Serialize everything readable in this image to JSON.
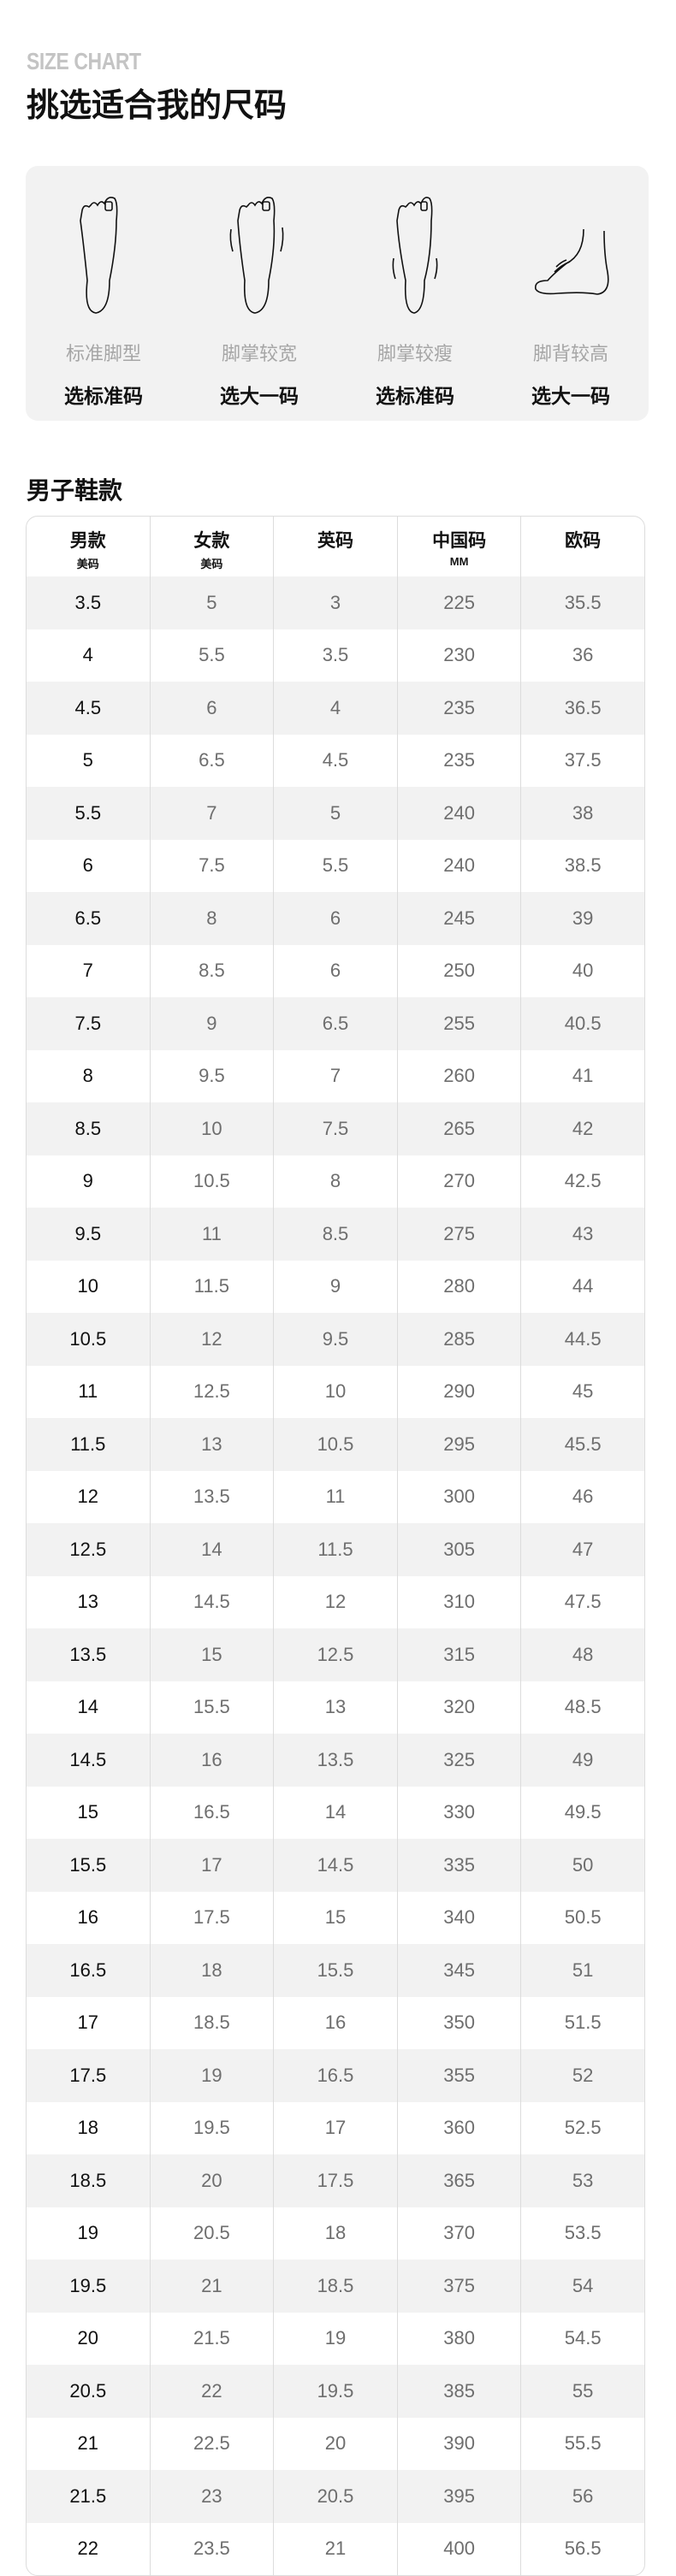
{
  "header": {
    "eyebrow": "SIZE CHART",
    "title": "挑选适合我的尺码"
  },
  "foot_types": [
    {
      "icon": "standard-foot-icon",
      "label": "标准脚型",
      "advice": "选标准码"
    },
    {
      "icon": "wide-forefoot-icon",
      "label": "脚掌较宽",
      "advice": "选大一码"
    },
    {
      "icon": "narrow-forefoot-icon",
      "label": "脚掌较瘦",
      "advice": "选标准码"
    },
    {
      "icon": "high-instep-icon",
      "label": "脚背较高",
      "advice": "选大一码"
    }
  ],
  "section_title": "男子鞋款",
  "table": {
    "columns": [
      {
        "label": "男款",
        "sub": "美码"
      },
      {
        "label": "女款",
        "sub": "美码"
      },
      {
        "label": "英码",
        "sub": ""
      },
      {
        "label": "中国码",
        "sub": "MM"
      },
      {
        "label": "欧码",
        "sub": ""
      }
    ],
    "rows": [
      [
        "3.5",
        "5",
        "3",
        "225",
        "35.5"
      ],
      [
        "4",
        "5.5",
        "3.5",
        "230",
        "36"
      ],
      [
        "4.5",
        "6",
        "4",
        "235",
        "36.5"
      ],
      [
        "5",
        "6.5",
        "4.5",
        "235",
        "37.5"
      ],
      [
        "5.5",
        "7",
        "5",
        "240",
        "38"
      ],
      [
        "6",
        "7.5",
        "5.5",
        "240",
        "38.5"
      ],
      [
        "6.5",
        "8",
        "6",
        "245",
        "39"
      ],
      [
        "7",
        "8.5",
        "6",
        "250",
        "40"
      ],
      [
        "7.5",
        "9",
        "6.5",
        "255",
        "40.5"
      ],
      [
        "8",
        "9.5",
        "7",
        "260",
        "41"
      ],
      [
        "8.5",
        "10",
        "7.5",
        "265",
        "42"
      ],
      [
        "9",
        "10.5",
        "8",
        "270",
        "42.5"
      ],
      [
        "9.5",
        "11",
        "8.5",
        "275",
        "43"
      ],
      [
        "10",
        "11.5",
        "9",
        "280",
        "44"
      ],
      [
        "10.5",
        "12",
        "9.5",
        "285",
        "44.5"
      ],
      [
        "11",
        "12.5",
        "10",
        "290",
        "45"
      ],
      [
        "11.5",
        "13",
        "10.5",
        "295",
        "45.5"
      ],
      [
        "12",
        "13.5",
        "11",
        "300",
        "46"
      ],
      [
        "12.5",
        "14",
        "11.5",
        "305",
        "47"
      ],
      [
        "13",
        "14.5",
        "12",
        "310",
        "47.5"
      ],
      [
        "13.5",
        "15",
        "12.5",
        "315",
        "48"
      ],
      [
        "14",
        "15.5",
        "13",
        "320",
        "48.5"
      ],
      [
        "14.5",
        "16",
        "13.5",
        "325",
        "49"
      ],
      [
        "15",
        "16.5",
        "14",
        "330",
        "49.5"
      ],
      [
        "15.5",
        "17",
        "14.5",
        "335",
        "50"
      ],
      [
        "16",
        "17.5",
        "15",
        "340",
        "50.5"
      ],
      [
        "16.5",
        "18",
        "15.5",
        "345",
        "51"
      ],
      [
        "17",
        "18.5",
        "16",
        "350",
        "51.5"
      ],
      [
        "17.5",
        "19",
        "16.5",
        "355",
        "52"
      ],
      [
        "18",
        "19.5",
        "17",
        "360",
        "52.5"
      ],
      [
        "18.5",
        "20",
        "17.5",
        "365",
        "53"
      ],
      [
        "19",
        "20.5",
        "18",
        "370",
        "53.5"
      ],
      [
        "19.5",
        "21",
        "18.5",
        "375",
        "54"
      ],
      [
        "20",
        "21.5",
        "19",
        "380",
        "54.5"
      ],
      [
        "20.5",
        "22",
        "19.5",
        "385",
        "55"
      ],
      [
        "21",
        "22.5",
        "20",
        "390",
        "55.5"
      ],
      [
        "21.5",
        "23",
        "20.5",
        "395",
        "56"
      ],
      [
        "22",
        "23.5",
        "21",
        "400",
        "56.5"
      ]
    ]
  }
}
